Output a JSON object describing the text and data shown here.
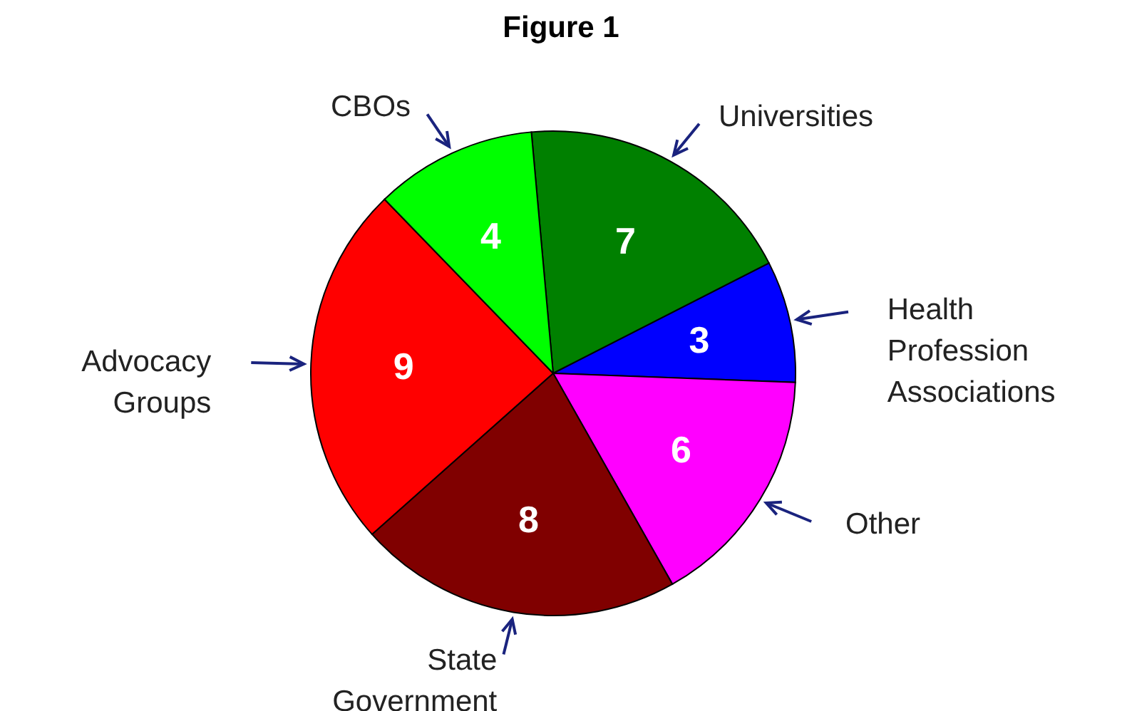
{
  "chart_data": {
    "type": "pie",
    "title": "Figure 1",
    "categories": [
      "Universities",
      "Health Profession Associations",
      "Other",
      "State Government",
      "Advocacy Groups",
      "CBOs"
    ],
    "values": [
      7,
      3,
      6,
      8,
      9,
      4
    ],
    "colors": [
      "#008000",
      "#0000ff",
      "#ff00ff",
      "#800000",
      "#ff0000",
      "#00ff00"
    ],
    "data_labels": true,
    "legend": false
  }
}
